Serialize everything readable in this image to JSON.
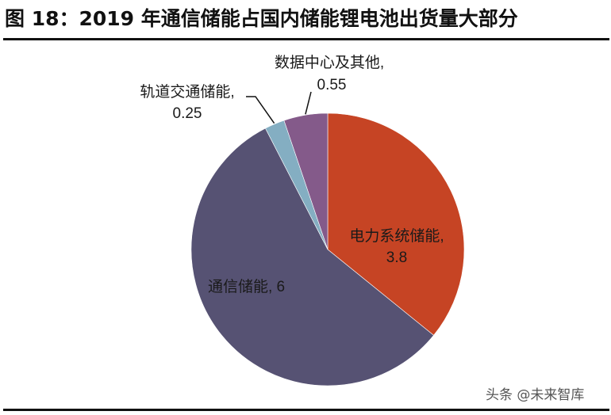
{
  "header": {
    "title": "图 18：2019 年通信储能占国内储能锂电池出货量大部分"
  },
  "watermark": "头条 @未来智库",
  "chart_data": {
    "type": "pie",
    "title": "图 18：2019 年通信储能占国内储能锂电池出货量大部分",
    "start_angle": "12 o'clock",
    "direction": "clockwise",
    "slices": [
      {
        "label": "电力系统储能",
        "value": 3.8,
        "color": "#C64424",
        "label_text": "电力系统储能,",
        "value_text": "3.8",
        "label_position": "inside"
      },
      {
        "label": "通信储能",
        "value": 6,
        "color": "#565273",
        "label_text": "通信储能, 6",
        "value_text": "",
        "label_position": "inside"
      },
      {
        "label": "轨道交通储能",
        "value": 0.25,
        "color": "#84AEC2",
        "label_text": "轨道交通储能,",
        "value_text": "0.25",
        "label_position": "outside-leader"
      },
      {
        "label": "数据中心及其他",
        "value": 0.55,
        "color": "#845A8A",
        "label_text": "数据中心及其他,",
        "value_text": "0.55",
        "label_position": "outside-leader"
      }
    ],
    "legend": "none"
  }
}
